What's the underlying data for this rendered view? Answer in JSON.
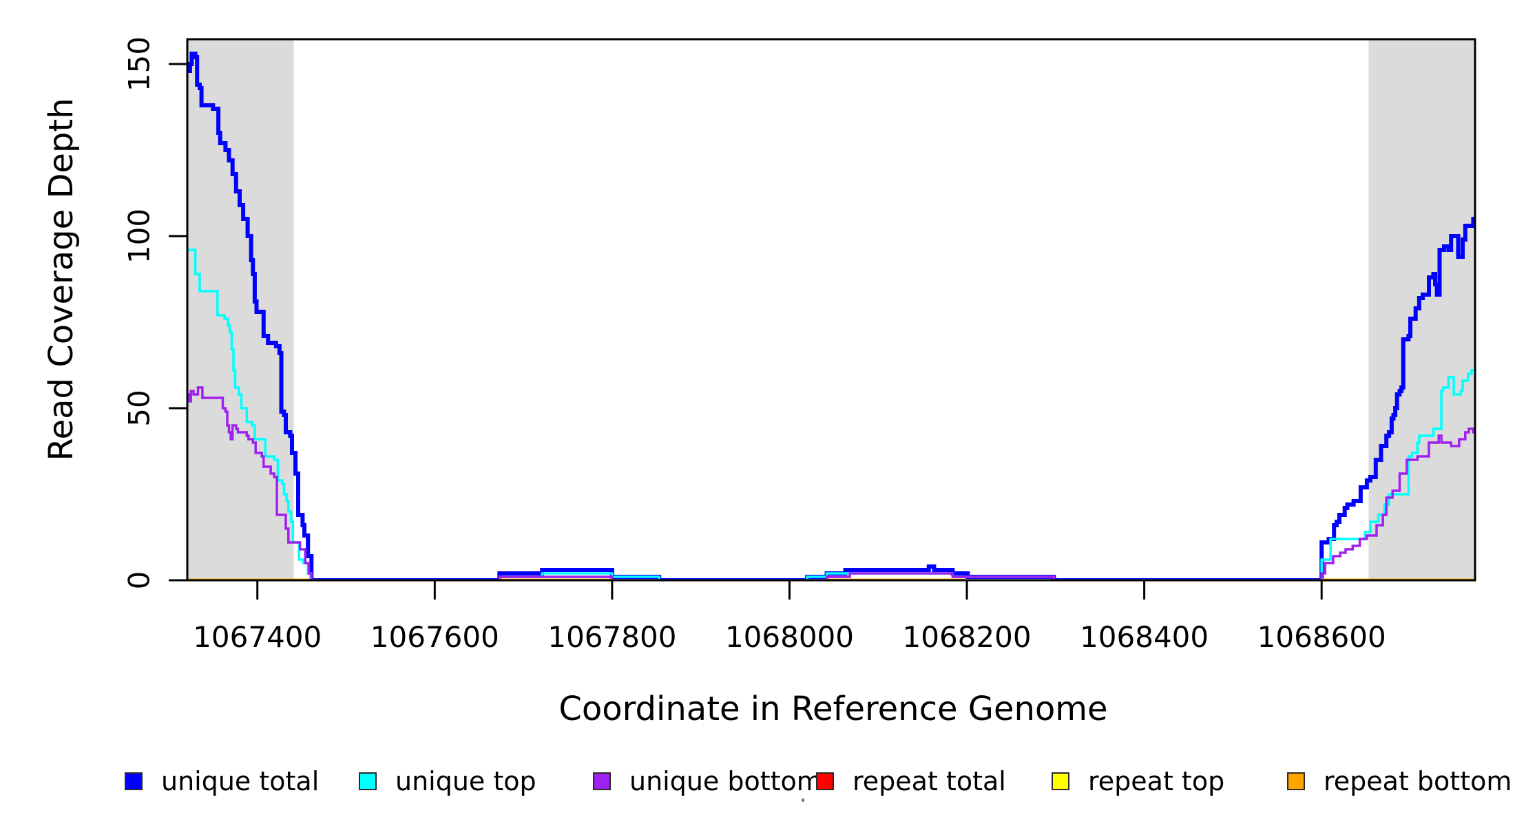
{
  "figure": {
    "title": "",
    "x_axis_label": "Coordinate in Reference Genome",
    "y_axis_label": "Read Coverage Depth"
  },
  "chart_data": {
    "type": "line",
    "subtype": "step-post-coverage",
    "title": "",
    "xlabel": "Coordinate in Reference Genome",
    "ylabel": "Read Coverage Depth",
    "xlim": [
      1067321,
      1068773
    ],
    "ylim": [
      0,
      157
    ],
    "xticks": [
      1067400,
      1067600,
      1067800,
      1068000,
      1068200,
      1068400,
      1068600
    ],
    "yticks": [
      0,
      50,
      100,
      150
    ],
    "grid": false,
    "legend_position": "bottom",
    "background_color": "#ffffff",
    "box_color": "#000000",
    "shaded_regions": [
      {
        "x0": 1067321,
        "x1": 1067441,
        "color": "#dbdbdb"
      },
      {
        "x0": 1068653,
        "x1": 1068773,
        "color": "#dbdbdb"
      }
    ],
    "series": [
      {
        "name": "unique total",
        "color": "#0000ff",
        "linewidth": 6,
        "points": [
          [
            1067321,
            148
          ],
          [
            1067324,
            150
          ],
          [
            1067326,
            153
          ],
          [
            1067330,
            152
          ],
          [
            1067332,
            144
          ],
          [
            1067335,
            143
          ],
          [
            1067337,
            138
          ],
          [
            1067350,
            137
          ],
          [
            1067356,
            130
          ],
          [
            1067358,
            127
          ],
          [
            1067364,
            125
          ],
          [
            1067368,
            122
          ],
          [
            1067372,
            118
          ],
          [
            1067376,
            113
          ],
          [
            1067380,
            109
          ],
          [
            1067384,
            105
          ],
          [
            1067389,
            100
          ],
          [
            1067393,
            93
          ],
          [
            1067395,
            89
          ],
          [
            1067397,
            81
          ],
          [
            1067399,
            78
          ],
          [
            1067407,
            71
          ],
          [
            1067412,
            69
          ],
          [
            1067421,
            68
          ],
          [
            1067425,
            66
          ],
          [
            1067427,
            49
          ],
          [
            1067430,
            48
          ],
          [
            1067432,
            43
          ],
          [
            1067437,
            42
          ],
          [
            1067439,
            37
          ],
          [
            1067443,
            31
          ],
          [
            1067446,
            19
          ],
          [
            1067451,
            16
          ],
          [
            1067453,
            13
          ],
          [
            1067457,
            7
          ],
          [
            1067461,
            0
          ],
          [
            1067673,
            2
          ],
          [
            1067721,
            3
          ],
          [
            1067800,
            1
          ],
          [
            1067853,
            0
          ],
          [
            1068020,
            1
          ],
          [
            1068042,
            2
          ],
          [
            1068063,
            3
          ],
          [
            1068157,
            4
          ],
          [
            1068163,
            3
          ],
          [
            1068184,
            2
          ],
          [
            1068201,
            1
          ],
          [
            1068298,
            0
          ],
          [
            1068600,
            11
          ],
          [
            1068608,
            12
          ],
          [
            1068614,
            16
          ],
          [
            1068617,
            17
          ],
          [
            1068620,
            19
          ],
          [
            1068626,
            21
          ],
          [
            1068629,
            22
          ],
          [
            1068636,
            23
          ],
          [
            1068644,
            27
          ],
          [
            1068651,
            29
          ],
          [
            1068655,
            30
          ],
          [
            1068661,
            35
          ],
          [
            1068667,
            39
          ],
          [
            1068673,
            42
          ],
          [
            1068676,
            43
          ],
          [
            1068679,
            47
          ],
          [
            1068681,
            48
          ],
          [
            1068683,
            50
          ],
          [
            1068685,
            54
          ],
          [
            1068688,
            55
          ],
          [
            1068690,
            56
          ],
          [
            1068692,
            70
          ],
          [
            1068698,
            71
          ],
          [
            1068700,
            76
          ],
          [
            1068706,
            79
          ],
          [
            1068710,
            82
          ],
          [
            1068714,
            83
          ],
          [
            1068721,
            88
          ],
          [
            1068726,
            89
          ],
          [
            1068728,
            86
          ],
          [
            1068730,
            83
          ],
          [
            1068733,
            96
          ],
          [
            1068738,
            97
          ],
          [
            1068743,
            96
          ],
          [
            1068746,
            100
          ],
          [
            1068754,
            94
          ],
          [
            1068759,
            99
          ],
          [
            1068762,
            103
          ],
          [
            1068769,
            103
          ],
          [
            1068771,
            105
          ],
          [
            1068773,
            105
          ]
        ]
      },
      {
        "name": "unique top",
        "color": "#00ffff",
        "linewidth": 3.5,
        "points": [
          [
            1067321,
            96
          ],
          [
            1067330,
            89
          ],
          [
            1067335,
            84
          ],
          [
            1067355,
            77
          ],
          [
            1067363,
            76
          ],
          [
            1067367,
            74
          ],
          [
            1067369,
            72
          ],
          [
            1067371,
            67
          ],
          [
            1067373,
            61
          ],
          [
            1067375,
            56
          ],
          [
            1067379,
            54
          ],
          [
            1067382,
            50
          ],
          [
            1067388,
            46
          ],
          [
            1067394,
            45
          ],
          [
            1067397,
            41
          ],
          [
            1067407,
            41
          ],
          [
            1067409,
            36
          ],
          [
            1067419,
            35
          ],
          [
            1067423,
            29
          ],
          [
            1067428,
            28
          ],
          [
            1067430,
            25
          ],
          [
            1067433,
            23
          ],
          [
            1067435,
            20
          ],
          [
            1067438,
            17
          ],
          [
            1067440,
            11
          ],
          [
            1067447,
            6
          ],
          [
            1067452,
            5
          ],
          [
            1067457,
            2
          ],
          [
            1067460,
            0
          ],
          [
            1067673,
            1
          ],
          [
            1067721,
            2
          ],
          [
            1067800,
            1
          ],
          [
            1067853,
            0
          ],
          [
            1068020,
            1
          ],
          [
            1068042,
            2
          ],
          [
            1068184,
            1
          ],
          [
            1068298,
            0
          ],
          [
            1068600,
            6
          ],
          [
            1068610,
            12
          ],
          [
            1068646,
            12
          ],
          [
            1068649,
            14
          ],
          [
            1068655,
            17
          ],
          [
            1068664,
            19
          ],
          [
            1068671,
            22
          ],
          [
            1068676,
            25
          ],
          [
            1068698,
            36
          ],
          [
            1068702,
            37
          ],
          [
            1068708,
            40
          ],
          [
            1068710,
            42
          ],
          [
            1068726,
            44
          ],
          [
            1068735,
            55
          ],
          [
            1068737,
            56
          ],
          [
            1068743,
            59
          ],
          [
            1068749,
            54
          ],
          [
            1068757,
            55
          ],
          [
            1068759,
            58
          ],
          [
            1068765,
            60
          ],
          [
            1068769,
            61
          ],
          [
            1068773,
            61
          ]
        ]
      },
      {
        "name": "unique bottom",
        "color": "#a020f0",
        "linewidth": 3.5,
        "points": [
          [
            1067321,
            54
          ],
          [
            1067323,
            52
          ],
          [
            1067325,
            55
          ],
          [
            1067328,
            54
          ],
          [
            1067333,
            56
          ],
          [
            1067338,
            53
          ],
          [
            1067357,
            53
          ],
          [
            1067361,
            50
          ],
          [
            1067364,
            49
          ],
          [
            1067366,
            45
          ],
          [
            1067368,
            43
          ],
          [
            1067370,
            41
          ],
          [
            1067372,
            45
          ],
          [
            1067376,
            44
          ],
          [
            1067378,
            43
          ],
          [
            1067385,
            43
          ],
          [
            1067388,
            42
          ],
          [
            1067390,
            41
          ],
          [
            1067395,
            40
          ],
          [
            1067398,
            37
          ],
          [
            1067405,
            36
          ],
          [
            1067407,
            33
          ],
          [
            1067413,
            33
          ],
          [
            1067415,
            31
          ],
          [
            1067419,
            30
          ],
          [
            1067422,
            19
          ],
          [
            1067432,
            15
          ],
          [
            1067435,
            11
          ],
          [
            1067446,
            11
          ],
          [
            1067448,
            9
          ],
          [
            1067454,
            5
          ],
          [
            1067458,
            2
          ],
          [
            1067461,
            0
          ],
          [
            1067673,
            1
          ],
          [
            1067800,
            0
          ],
          [
            1068042,
            1
          ],
          [
            1068068,
            2
          ],
          [
            1068184,
            1
          ],
          [
            1068298,
            0
          ],
          [
            1068600,
            2
          ],
          [
            1068604,
            5
          ],
          [
            1068613,
            7
          ],
          [
            1068621,
            8
          ],
          [
            1068627,
            9
          ],
          [
            1068635,
            10
          ],
          [
            1068643,
            12
          ],
          [
            1068651,
            13
          ],
          [
            1068662,
            16
          ],
          [
            1068669,
            19
          ],
          [
            1068673,
            24
          ],
          [
            1068680,
            26
          ],
          [
            1068688,
            31
          ],
          [
            1068696,
            35
          ],
          [
            1068708,
            36
          ],
          [
            1068721,
            40
          ],
          [
            1068732,
            42
          ],
          [
            1068735,
            40
          ],
          [
            1068746,
            39
          ],
          [
            1068755,
            41
          ],
          [
            1068762,
            43
          ],
          [
            1068766,
            44
          ],
          [
            1068771,
            43
          ],
          [
            1068773,
            44
          ]
        ]
      },
      {
        "name": "repeat total",
        "color": "#ff0000",
        "linewidth": 3,
        "depth": 0,
        "segments": [
          [
            1067321,
            1067459
          ],
          [
            1067673,
            1067800
          ],
          [
            1068042,
            1068198
          ],
          [
            1068600,
            1068773
          ]
        ]
      },
      {
        "name": "repeat top",
        "color": "#ffff00",
        "linewidth": 3,
        "depth": 0,
        "segments": [
          [
            1067321,
            1067459
          ],
          [
            1067673,
            1067800
          ],
          [
            1068042,
            1068198
          ],
          [
            1068600,
            1068773
          ]
        ]
      },
      {
        "name": "repeat bottom",
        "color": "#ffa500",
        "linewidth": 5,
        "depth": 0,
        "segments": [
          [
            1067321,
            1067459
          ],
          [
            1067673,
            1067800
          ],
          [
            1068042,
            1068198
          ],
          [
            1068600,
            1068773
          ]
        ]
      }
    ]
  },
  "legend": {
    "items": [
      {
        "label": "unique total",
        "color": "#0000ff"
      },
      {
        "label": "unique top",
        "color": "#00ffff"
      },
      {
        "label": "unique bottom",
        "color": "#a020f0"
      },
      {
        "label": "repeat total",
        "color": "#ff0000"
      },
      {
        "label": "repeat top",
        "color": "#ffff00"
      },
      {
        "label": "repeat bottom",
        "color": "#ffa500"
      }
    ]
  },
  "decorations": {
    "stray_mark": {
      "present": true
    }
  }
}
